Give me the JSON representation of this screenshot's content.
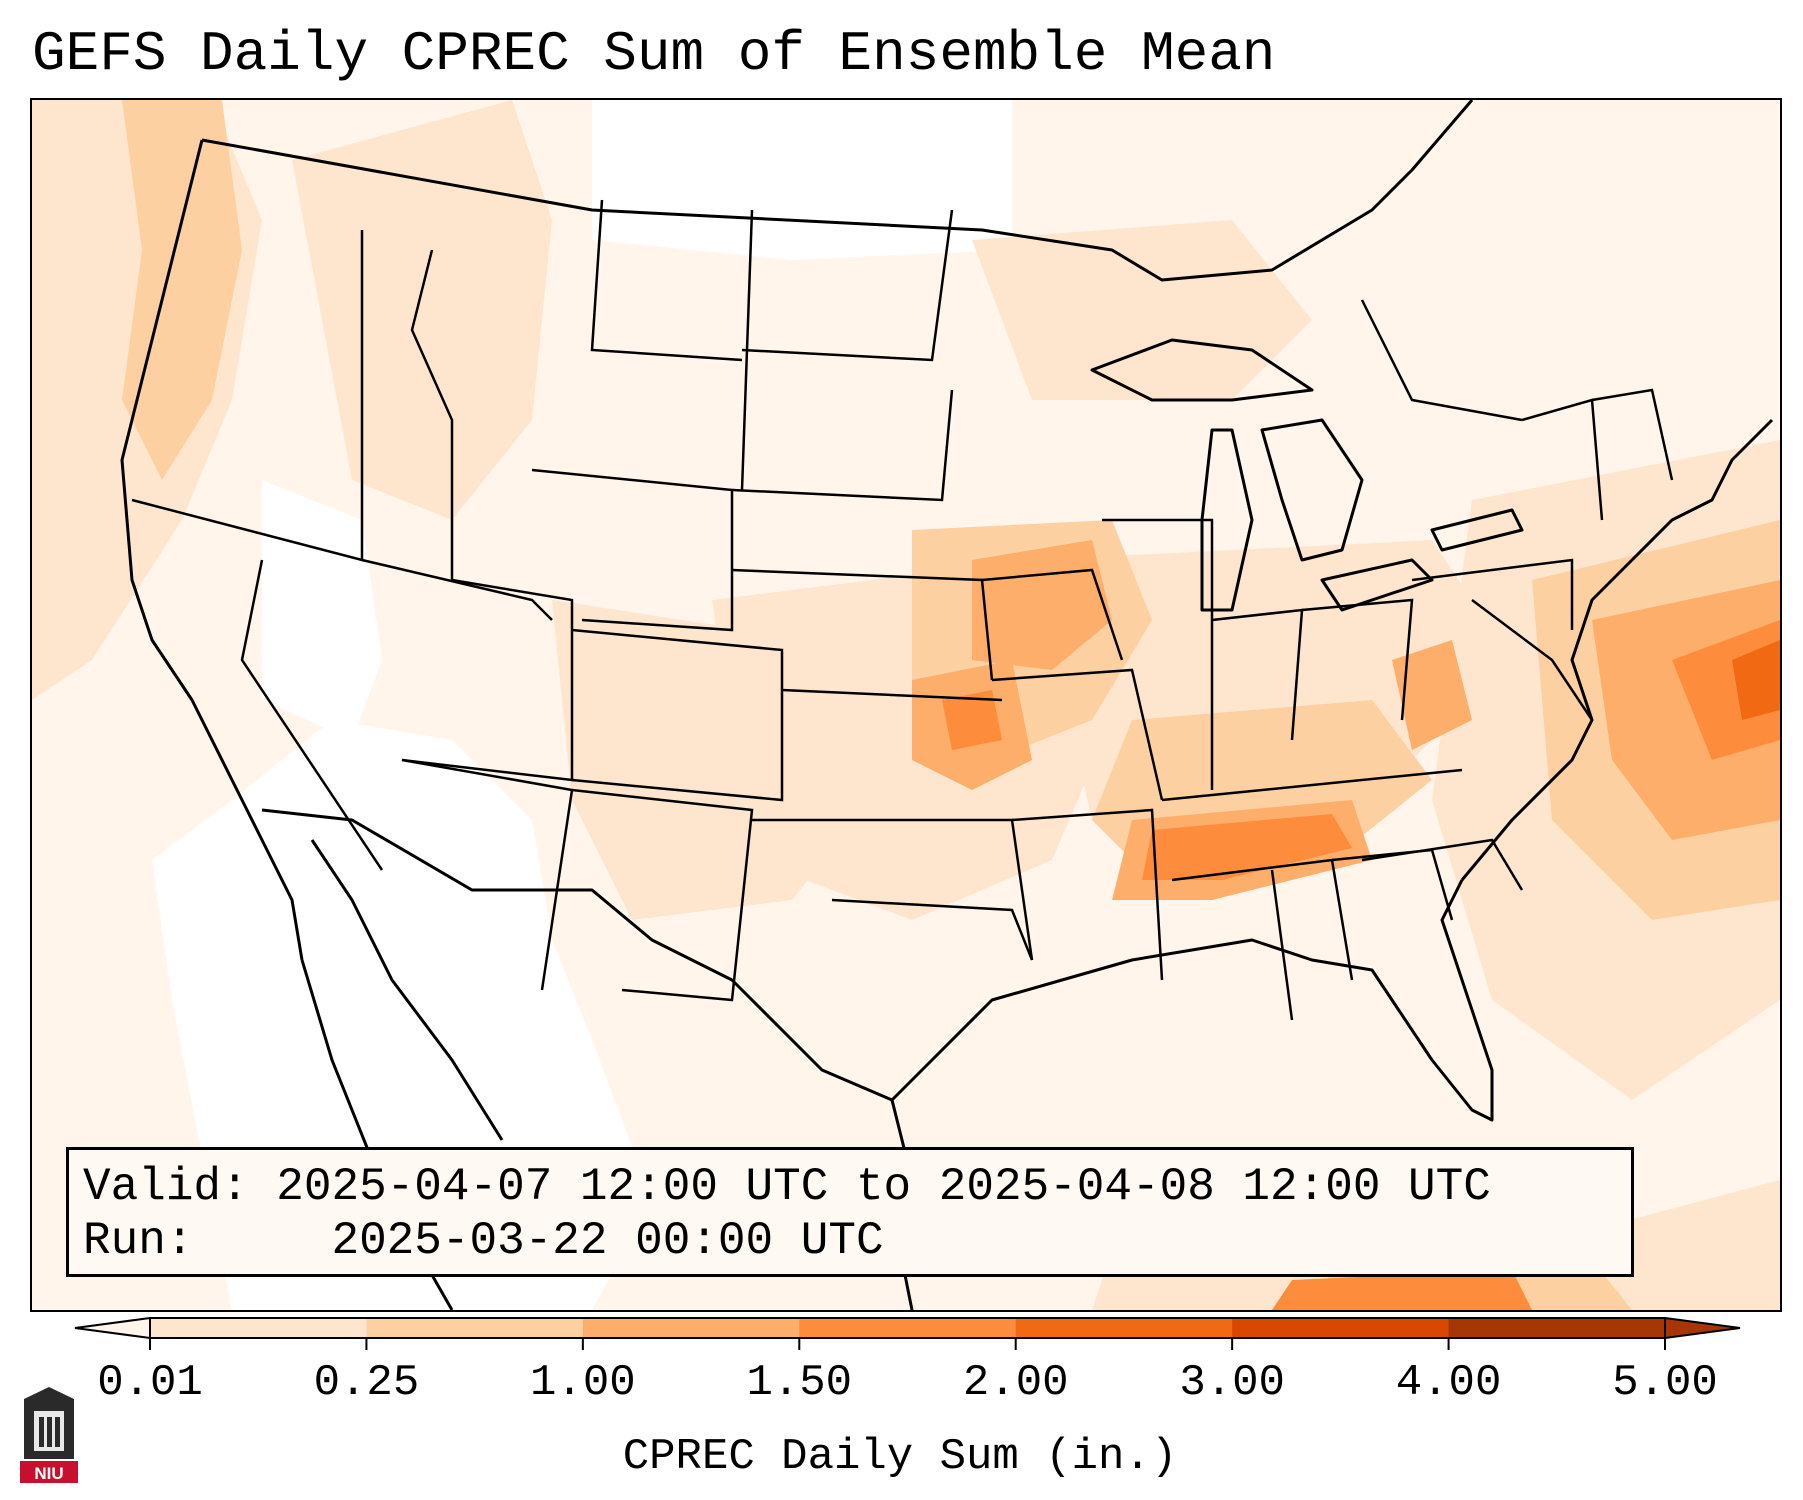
{
  "title": "GEFS Daily CPREC Sum of Ensemble Mean",
  "info": {
    "valid_label": "Valid:",
    "valid_value": "2025-04-07 12:00 UTC to 2025-04-08 12:00 UTC",
    "run_label": "Run:",
    "run_value": "2025-03-22 00:00 UTC"
  },
  "colorbar": {
    "label": "CPREC Daily Sum (in.)",
    "ticks": [
      "0.01",
      "0.25",
      "1.00",
      "1.50",
      "2.00",
      "3.00",
      "4.00",
      "5.00"
    ],
    "colors": [
      "#fff5eb",
      "#fee6ce",
      "#fdd0a2",
      "#fdae6b",
      "#fd8d3c",
      "#f16913",
      "#d94801",
      "#a63603"
    ],
    "extend": "both"
  },
  "logo": {
    "text": "NIU",
    "colors": {
      "shield": "#2a2a2a",
      "band": "#c8102e"
    }
  },
  "map": {
    "projection": "conus-lambert",
    "coverage": "continental US, southern Canada, northern Mexico, Gulf of Mexico, western Atlantic",
    "max_region": "Atlantic offshore east of Virginia",
    "secondary_max": "Tennessee valley, Missouri, Arkansas, Iowa"
  }
}
